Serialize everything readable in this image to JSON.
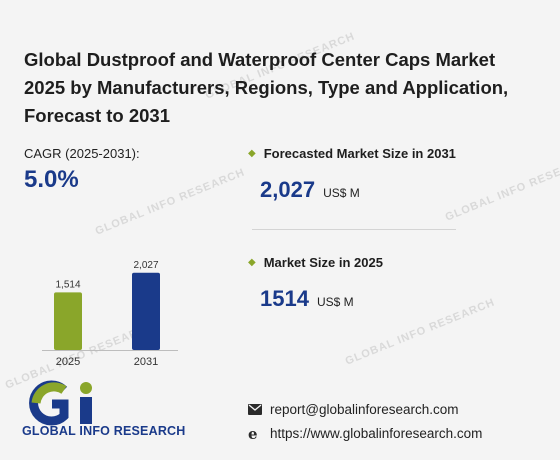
{
  "title": "Global Dustproof and Waterproof Center Caps Market 2025 by Manufacturers, Regions, Type and Application, Forecast to 2031",
  "cagr": {
    "label": "CAGR (2025-2031):",
    "value": "5.0%"
  },
  "forecast": {
    "label": "Forecasted Market Size in 2031",
    "value": "2,027",
    "unit": "US$ M"
  },
  "market": {
    "label": "Market Size in 2025",
    "value": "1514",
    "unit": "US$ M"
  },
  "contact": {
    "email": "report@globalinforesearch.com",
    "website": "https://www.globalinforesearch.com"
  },
  "logo_text": "GLOBAL INFO RESEARCH",
  "watermark_text": "GLOBAL INFO RESEARCH",
  "colors": {
    "accent_blue": "#1a3a8a",
    "accent_green": "#8aa62a"
  },
  "chart_data": {
    "type": "bar",
    "categories": [
      "2025",
      "2031"
    ],
    "values": [
      1514,
      2027
    ],
    "data_labels": [
      "1,514",
      "2,027"
    ],
    "colors": [
      "#8aa62a",
      "#1a3a8a"
    ],
    "ylim": [
      0,
      2100
    ]
  }
}
